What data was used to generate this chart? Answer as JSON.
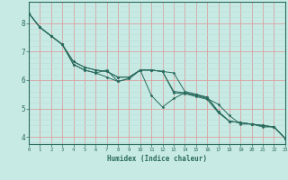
{
  "xlabel": "Humidex (Indice chaleur)",
  "bg_color": "#c8eae4",
  "line_color": "#2a6b5e",
  "xmin": 0,
  "xmax": 23,
  "ymin": 3.75,
  "ymax": 8.75,
  "grid_major_color": "#d9a0a0",
  "grid_minor_color": "#b8ddd8",
  "yticks": [
    4,
    5,
    6,
    7,
    8
  ],
  "lines": [
    [
      8.35,
      7.85,
      7.55,
      7.25,
      6.55,
      6.35,
      6.25,
      6.35,
      5.95,
      6.05,
      6.35,
      5.45,
      5.05,
      5.35,
      5.55,
      5.45,
      5.35,
      5.15,
      4.75,
      4.45,
      4.45,
      4.35,
      4.35,
      3.95
    ],
    [
      8.35,
      7.85,
      7.55,
      7.25,
      6.65,
      6.45,
      6.35,
      6.3,
      6.1,
      6.1,
      6.35,
      6.35,
      6.3,
      6.25,
      5.6,
      5.5,
      5.4,
      4.9,
      4.55,
      4.5,
      4.45,
      4.4,
      4.35,
      3.95
    ],
    [
      8.35,
      7.85,
      7.55,
      7.25,
      6.65,
      6.45,
      6.35,
      6.3,
      6.1,
      6.1,
      6.35,
      6.35,
      6.3,
      5.6,
      5.55,
      5.48,
      5.38,
      4.88,
      4.55,
      4.5,
      4.45,
      4.4,
      4.35,
      3.95
    ],
    [
      8.35,
      7.85,
      7.55,
      7.25,
      6.55,
      6.35,
      6.25,
      6.1,
      5.95,
      6.05,
      6.35,
      6.35,
      6.3,
      5.55,
      5.52,
      5.42,
      5.32,
      4.85,
      4.55,
      4.5,
      4.45,
      4.4,
      4.35,
      3.95
    ]
  ]
}
